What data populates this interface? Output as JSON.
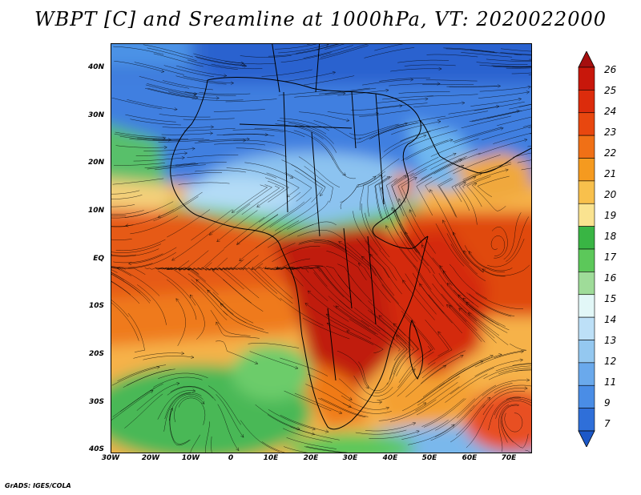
{
  "title": "WBPT [C] and Sreamline at 1000hPa, VT: 2020022000",
  "credit": "GrADS: IGES/COLA",
  "lat_labels": [
    "40N",
    "30N",
    "20N",
    "10N",
    "EQ",
    "10S",
    "20S",
    "30S",
    "40S"
  ],
  "lon_labels": [
    "30W",
    "20W",
    "10W",
    "0",
    "10E",
    "20E",
    "30E",
    "40E",
    "50E",
    "60E",
    "70E"
  ],
  "colorbar": {
    "labels": [
      "26",
      "25",
      "24",
      "23",
      "22",
      "21",
      "20",
      "19",
      "18",
      "17",
      "16",
      "15",
      "14",
      "13",
      "12",
      "11",
      "9",
      "7"
    ],
    "colors": [
      "#a50f0f",
      "#c8170b",
      "#dc2c0c",
      "#e8470f",
      "#f07016",
      "#f59a1f",
      "#f8c04c",
      "#fae390",
      "#39b544",
      "#5cc85a",
      "#9fdc99",
      "#e2f7f7",
      "#bde0f7",
      "#94c8f0",
      "#6aa9ec",
      "#4a8de6",
      "#2f6fd9",
      "#1c58c8"
    ]
  }
}
